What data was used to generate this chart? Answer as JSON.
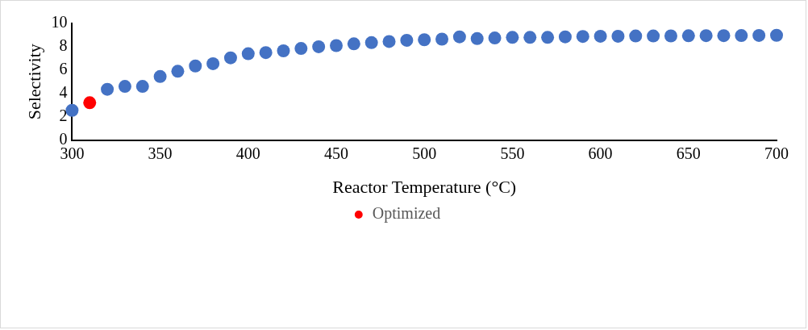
{
  "chart_data": {
    "type": "scatter",
    "xlabel": "Reactor Temperature (°C)",
    "ylabel": "Selectivity",
    "xlim": [
      300,
      700
    ],
    "xticks": [
      300,
      350,
      400,
      450,
      500,
      550,
      600,
      650,
      700
    ],
    "ylim": [
      0,
      10
    ],
    "yticks": [
      0,
      2,
      4,
      6,
      8,
      10
    ],
    "grid": false,
    "legend": "bottom",
    "marker": "circle",
    "series": [
      {
        "color": "#4472c4",
        "x": [
          300,
          320,
          330,
          340,
          350,
          360,
          370,
          380,
          390,
          400,
          410,
          420,
          430,
          440,
          450,
          460,
          470,
          480,
          490,
          500,
          510,
          520,
          530,
          540,
          550,
          560,
          570,
          580,
          590,
          600,
          610,
          620,
          630,
          640,
          650,
          660,
          670,
          680,
          690,
          700
        ],
        "values": [
          2.55,
          4.35,
          4.6,
          4.6,
          5.45,
          5.9,
          6.35,
          6.55,
          7.05,
          7.4,
          7.5,
          7.65,
          7.85,
          8.0,
          8.1,
          8.25,
          8.35,
          8.45,
          8.55,
          8.6,
          8.65,
          8.85,
          8.7,
          8.75,
          8.8,
          8.8,
          8.8,
          8.85,
          8.88,
          8.9,
          8.9,
          8.92,
          8.92,
          8.93,
          8.94,
          8.95,
          8.95,
          8.96,
          8.97,
          8.98
        ]
      },
      {
        "name": "Optimized",
        "color": "#ff0000",
        "x": [
          310
        ],
        "values": [
          3.2
        ]
      }
    ]
  }
}
